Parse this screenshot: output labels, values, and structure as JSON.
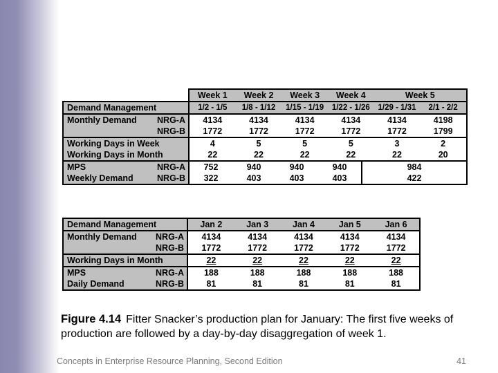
{
  "slide": {
    "caption": {
      "prefix": "Figure 4.14",
      "text": "Fitter Snacker’s production plan for January: The first five weeks of production are followed by a day-by-day disaggregation of week 1."
    },
    "footer": {
      "text": "Concepts in Enterprise Resource Planning, Second Edition",
      "page": "41"
    }
  },
  "colors": {
    "table_fill": "#c0c0c0",
    "border": "#000000",
    "band_purple": "#8a87ae"
  },
  "top_table": {
    "week_headers": [
      "Week 1",
      "Week 2",
      "Week 3",
      "Week 4",
      "Week 5"
    ],
    "date_row": {
      "label": "Demand Management",
      "dates": [
        "1/2 - 1/5",
        "1/8 - 1/12",
        "1/15 - 1/19",
        "1/22 - 1/26",
        "1/29 - 1/31",
        "2/1 - 2/2"
      ]
    },
    "monthly_demand": {
      "label": "Monthly Demand",
      "sub_a": "NRG-A",
      "sub_b": "NRG-B",
      "nrg_a": [
        "4134",
        "4134",
        "4134",
        "4134",
        "4134",
        "4198"
      ],
      "nrg_b": [
        "1772",
        "1772",
        "1772",
        "1772",
        "1772",
        "1799"
      ]
    },
    "working_days": {
      "label_week": "Working Days in Week",
      "label_month": "Working Days in Month",
      "week": [
        "4",
        "5",
        "5",
        "5",
        "3",
        "2"
      ],
      "month": [
        "22",
        "22",
        "22",
        "22",
        "22",
        "20"
      ]
    },
    "mps": {
      "label": "MPS",
      "label2": "Weekly Demand",
      "sub_a": "NRG-A",
      "sub_b": "NRG-B",
      "nrg_a": [
        "752",
        "940",
        "940",
        "940"
      ],
      "nrg_b": [
        "322",
        "403",
        "403",
        "403"
      ],
      "merged_a": "984",
      "merged_b": "422"
    }
  },
  "bottom_table": {
    "header": {
      "label": "Demand Management",
      "days": [
        "Jan 2",
        "Jan 3",
        "Jan 4",
        "Jan 5",
        "Jan 6"
      ]
    },
    "monthly_demand": {
      "label": "Monthly Demand",
      "sub_a": "NRG-A",
      "sub_b": "NRG-B",
      "nrg_a": [
        "4134",
        "4134",
        "4134",
        "4134",
        "4134"
      ],
      "nrg_b": [
        "1772",
        "1772",
        "1772",
        "1772",
        "1772"
      ]
    },
    "working_days": {
      "label": "Working Days in Month",
      "values": [
        "22",
        "22",
        "22",
        "22",
        "22"
      ]
    },
    "mps": {
      "label": "MPS",
      "label2": "Daily Demand",
      "sub_a": "NRG-A",
      "sub_b": "NRG-B",
      "nrg_a": [
        "188",
        "188",
        "188",
        "188",
        "188"
      ],
      "nrg_b": [
        "81",
        "81",
        "81",
        "81",
        "81"
      ]
    }
  }
}
